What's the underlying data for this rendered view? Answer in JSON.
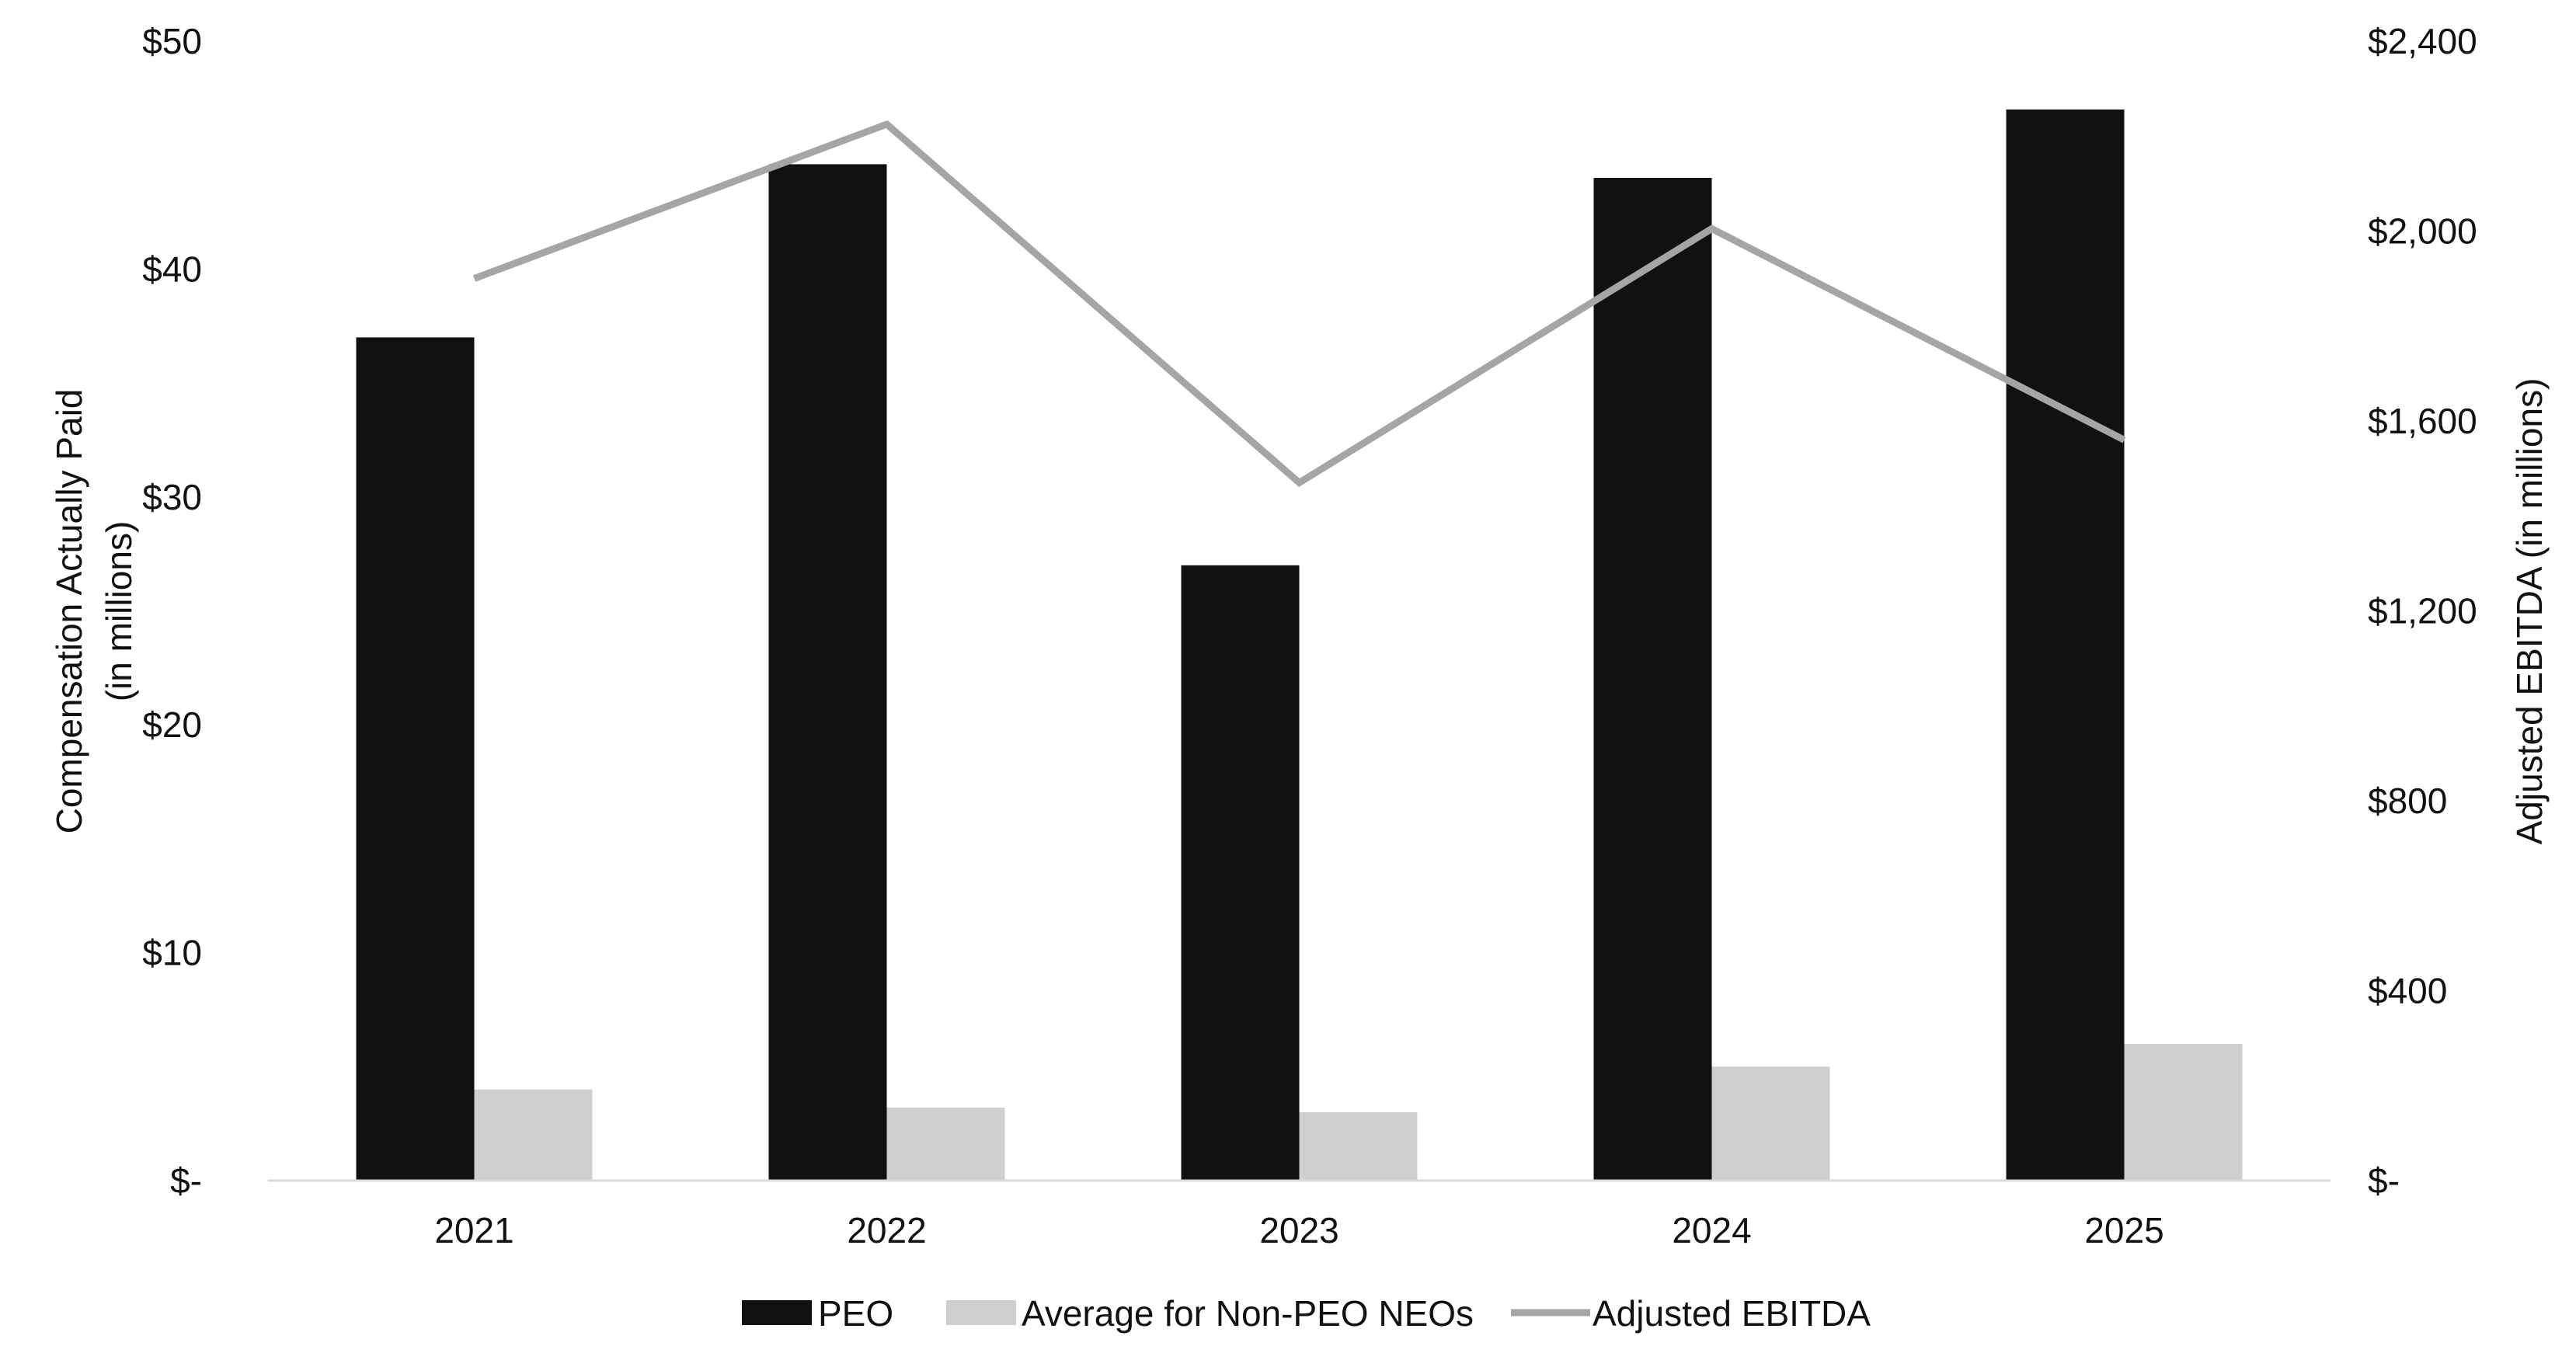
{
  "chart_data": {
    "type": "bar",
    "categories": [
      "2021",
      "2022",
      "2023",
      "2024",
      "2025"
    ],
    "series": [
      {
        "name": "PEO",
        "type": "bar",
        "axis": "left",
        "color": "#111111",
        "values": [
          37.0,
          44.6,
          27.0,
          44.0,
          47.0
        ]
      },
      {
        "name": "Average for Non-PEO NEOs",
        "type": "bar",
        "axis": "left",
        "color": "#d0cece",
        "values": [
          4.0,
          3.2,
          3.0,
          5.0,
          6.0
        ]
      },
      {
        "name": "Adjusted EBITDA",
        "type": "line",
        "axis": "right",
        "color": "#a5a5a5",
        "values": [
          1900,
          2225,
          1470,
          2005,
          1560
        ]
      }
    ],
    "left_axis": {
      "label_line1": "Compensation Actually Paid",
      "label_line2": "(in millions)",
      "ylim": [
        0,
        50
      ],
      "ticks": [
        0,
        10,
        20,
        30,
        40,
        50
      ],
      "tick_labels": [
        "$-",
        "$10",
        "$20",
        "$30",
        "$40",
        "$50"
      ]
    },
    "right_axis": {
      "label": "Adjusted EBITDA (in millions)",
      "ylim": [
        0,
        2400
      ],
      "ticks": [
        0,
        400,
        800,
        1200,
        1600,
        2000,
        2400
      ],
      "tick_labels": [
        "$-",
        "$400",
        "$800",
        "$1,200",
        "$1,600",
        "$2,000",
        "$2,400"
      ]
    },
    "grid": false,
    "legend_position": "bottom",
    "legend": [
      "PEO",
      "Average for Non-PEO NEOs",
      "Adjusted EBITDA"
    ]
  }
}
